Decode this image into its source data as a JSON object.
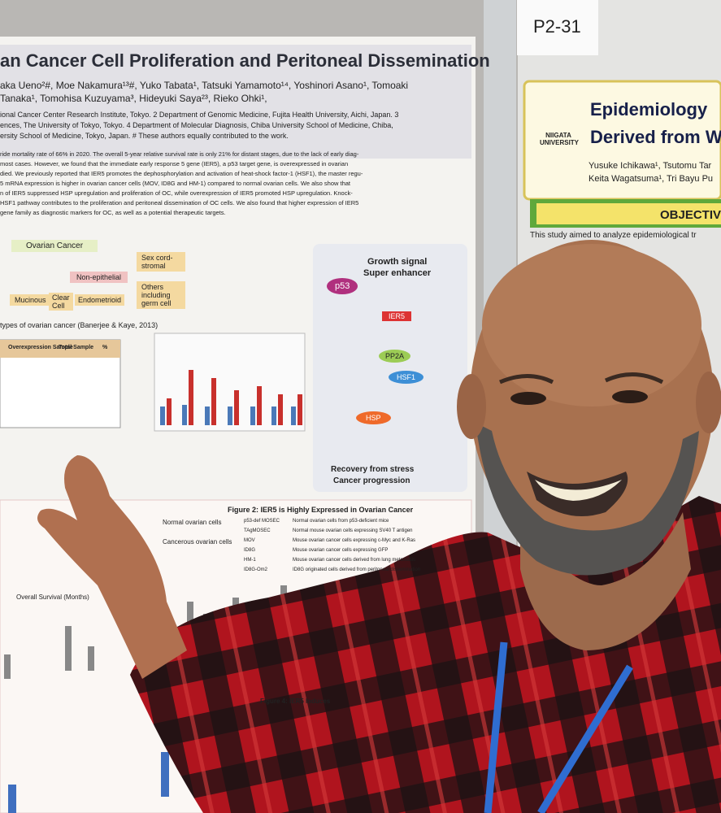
{
  "poster_number": "P2-31",
  "left_poster": {
    "title": "an Cancer Cell Proliferation and Peritoneal Dissemination",
    "authors": [
      "aka Ueno²#, Moe Nakamura¹³#, Yuko Tabata¹, Tatsuki Yamamoto¹⁴, Yoshinori Asano¹, Tomoaki",
      "Tanaka¹, Tomohisa Kuzuyama³, Hideyuki Saya²³, Rieko Ohki¹,",
      "ional Cancer Center Research Institute, Tokyo. 2 Department of Genomic Medicine, Fujita Health University, Aichi, Japan. 3",
      "ences, The University of Tokyo, Tokyo. 4 Department of Molecular Diagnosis, Chiba University School of Medicine, Chiba,",
      "ersity School of Medicine, Tokyo, Japan. # These authors equally contributed to the work."
    ],
    "abstract": [
      "ride mortality rate of 66% in 2020. The overall 5-year relative survival rate is only 21% for distant stages, due to the lack of early diag-",
      "most cases. However, we found that the immediate early response 5 gene (IER5), a p53 target gene, is overexpressed in ovarian",
      "died. We previously reported that IER5 promotes the dephosphorylation and activation of heat-shock factor-1 (HSF1), the master regu-",
      "5 mRNA expression is higher in ovarian cancer cells (MOV, ID8G and HM-1) compared to normal ovarian cells. We also show that",
      "n of IER5 suppressed HSP upregulation and proliferation of OC, while overexpression of IER5 promoted HSP upregulation. Knock-",
      "HSF1 pathway contributes to the proliferation and peritoneal dissemination of OC cells. We also found that higher expression of IER5",
      "gene family as diagnostic markers for OC, as well as a potential therapeutic targets."
    ],
    "diagram": {
      "ovarian_cancer": "Ovarian Cancer",
      "sex_cord": "Sex cord-stromal",
      "non_epithelial": "Non-epithelial",
      "others": "Others including germ cell",
      "mucinous": "Mucinous",
      "clear_cell": "Clear Cell",
      "endometrioid": "Endometrioid"
    },
    "subtypes_caption": "types of ovarian cancer (Banerjee & Kaye, 2013)",
    "table_header": [
      "Overexpression Sample",
      "Total Sample",
      "%"
    ],
    "pathway": {
      "growth": "Growth signal",
      "enhancer": "Super enhancer",
      "p53": "p53",
      "ier5": "IER5",
      "pp2a": "PP2A",
      "hsf1": "HSF1",
      "hsp": "HSP",
      "recovery": "Recovery from stress",
      "progression": "Cancer progression"
    },
    "fig2_title": "Figure 2: IER5 is Highly Expressed in Ovarian Cancer",
    "fig2_rows": [
      [
        "Normal ovarian cells",
        "p53-def MOSEC",
        "Normal ovarian cells from p53-deficient mice"
      ],
      [
        "",
        "TAgMOSEC",
        "Normal mouse ovarian cells expressing SV40 T antigen"
      ],
      [
        "Cancerous ovarian cells",
        "MOV",
        "Mouse ovarian cancer cells expressing c-Myc and K-Ras"
      ],
      [
        "",
        "ID8G",
        "Mouse ovarian cancer cells expressing GFP"
      ],
      [
        "",
        "HM-1",
        "Mouse ovarian cancer cells derived from lung metastasis"
      ],
      [
        "",
        "ID8G-Om2",
        "ID8G originated cells derived from peritoneal dissemination"
      ]
    ],
    "survival": "Overall Survival (Months)",
    "fig4": "Figure 4: IER5 Induces"
  },
  "right_poster": {
    "title1": "Epidemiology",
    "title2": "Derived from W",
    "university": "NIIGATA UNIVERSITY",
    "authors": [
      "Yusuke Ichikawa¹, Tsutomu Tar",
      "Keita Wagatsuma¹, Tri Bayu Pu"
    ],
    "objective": "OBJECTIV",
    "body": "This study aimed to analyze epidemiological tr"
  }
}
